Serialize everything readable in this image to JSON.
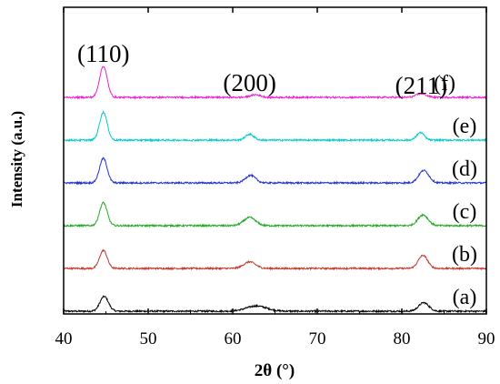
{
  "chart_data": {
    "type": "line",
    "title": "",
    "xlabel": "2θ (°)",
    "ylabel": "Intensity (a.u.)",
    "xlim": [
      40,
      90
    ],
    "xticks": [
      40,
      50,
      60,
      70,
      80,
      90
    ],
    "yticks_shown": false,
    "grid": false,
    "legend": "none",
    "peak_annotations": [
      {
        "text": "(110)",
        "x": 44.7
      },
      {
        "text": "(200)",
        "x": 62.0
      },
      {
        "text": "(211)",
        "x": 82.3
      }
    ],
    "peak_positions": [
      44.7,
      62.0,
      82.3
    ],
    "series": [
      {
        "name": "(a)",
        "color": "#000000",
        "baseline": 0.0,
        "peaks": [
          {
            "x": 44.8,
            "h": 0.45,
            "w": 0.5
          },
          {
            "x": 62.8,
            "h": 0.16,
            "w": 1.2
          },
          {
            "x": 82.6,
            "h": 0.26,
            "w": 0.6
          }
        ]
      },
      {
        "name": "(b)",
        "color": "#c0392b",
        "baseline": 1.0,
        "peaks": [
          {
            "x": 44.7,
            "h": 0.55,
            "w": 0.45
          },
          {
            "x": 62.0,
            "h": 0.2,
            "w": 0.7
          },
          {
            "x": 82.5,
            "h": 0.4,
            "w": 0.55
          }
        ]
      },
      {
        "name": "(c)",
        "color": "#22aa22",
        "baseline": 2.0,
        "peaks": [
          {
            "x": 44.7,
            "h": 0.7,
            "w": 0.45
          },
          {
            "x": 62.0,
            "h": 0.25,
            "w": 0.7
          },
          {
            "x": 82.5,
            "h": 0.33,
            "w": 0.6
          }
        ]
      },
      {
        "name": "(d)",
        "color": "#2233cc",
        "baseline": 3.0,
        "peaks": [
          {
            "x": 44.7,
            "h": 0.75,
            "w": 0.45
          },
          {
            "x": 62.1,
            "h": 0.23,
            "w": 0.6
          },
          {
            "x": 82.6,
            "h": 0.38,
            "w": 0.6
          }
        ]
      },
      {
        "name": "(e)",
        "color": "#00cccc",
        "baseline": 4.0,
        "peaks": [
          {
            "x": 44.7,
            "h": 0.85,
            "w": 0.45
          },
          {
            "x": 62.0,
            "h": 0.18,
            "w": 0.5
          },
          {
            "x": 82.2,
            "h": 0.23,
            "w": 0.45
          }
        ]
      },
      {
        "name": "(f)",
        "color": "#ee22cc",
        "baseline": 5.0,
        "peaks": [
          {
            "x": 44.7,
            "h": 0.95,
            "w": 0.45
          },
          {
            "x": 62.7,
            "h": 0.08,
            "w": 0.6
          },
          {
            "x": 82.3,
            "h": 0.11,
            "w": 0.6
          }
        ]
      }
    ]
  }
}
